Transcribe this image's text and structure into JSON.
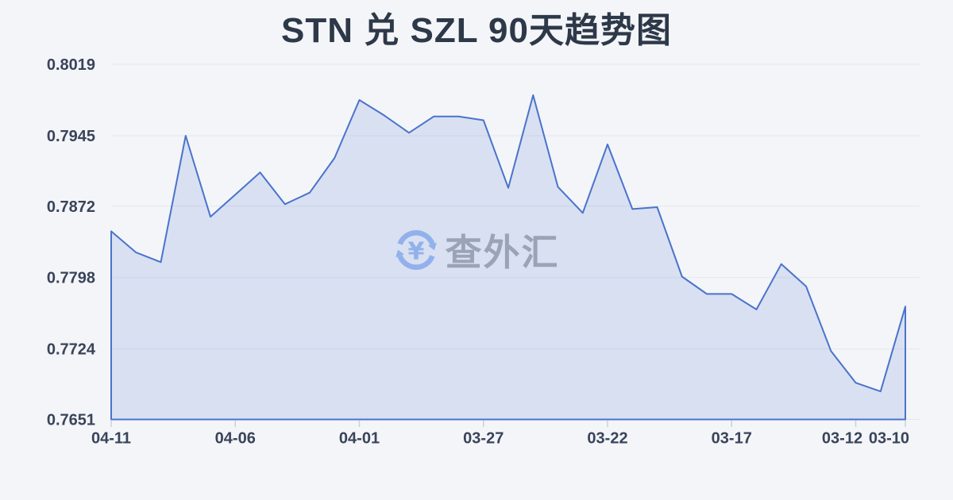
{
  "page": {
    "background": "#f4f5f8"
  },
  "header": {
    "title": "STN 兑 SZL 90天趋势图"
  },
  "watermark": {
    "text": "查外汇",
    "icon": "currency-exchange-icon",
    "icon_color": "#92b1ec",
    "text_color": "#9aa4b6"
  },
  "chart_data": {
    "type": "area",
    "title": "STN 兑 SZL 90天趋势图",
    "x": [
      "04-11",
      "04-10",
      "04-09",
      "04-08",
      "04-07",
      "04-06",
      "04-05",
      "04-04",
      "04-03",
      "04-02",
      "04-01",
      "03-31",
      "03-30",
      "03-29",
      "03-28",
      "03-27",
      "03-26",
      "03-25",
      "03-24",
      "03-23",
      "03-22",
      "03-21",
      "03-20",
      "03-19",
      "03-18",
      "03-17",
      "03-16",
      "03-15",
      "03-14",
      "03-13",
      "03-12",
      "03-11",
      "03-10"
    ],
    "values": [
      0.7846,
      0.7824,
      0.7814,
      0.7945,
      0.7861,
      0.7884,
      0.7907,
      0.7874,
      0.7886,
      0.7922,
      0.7982,
      0.7966,
      0.7948,
      0.7965,
      0.7965,
      0.7961,
      0.7891,
      0.7987,
      0.7892,
      0.7865,
      0.7936,
      0.7869,
      0.7871,
      0.7799,
      0.7781,
      0.7781,
      0.7765,
      0.7812,
      0.7789,
      0.7722,
      0.7689,
      0.768,
      0.7768
    ],
    "ylim": [
      0.7651,
      0.8019
    ],
    "y_tick_labels": [
      "0.8019",
      "0.7945",
      "0.7872",
      "0.7798",
      "0.7724",
      "0.7651"
    ],
    "y_ticks": [
      0.8019,
      0.7945,
      0.7872,
      0.7798,
      0.7724,
      0.7651
    ],
    "x_tick_labels": [
      "04-11",
      "04-06",
      "04-01",
      "03-27",
      "03-22",
      "03-17",
      "03-12",
      "03-10"
    ],
    "x_tick_indices": [
      0,
      5,
      10,
      15,
      20,
      25,
      30,
      32
    ],
    "grid": true,
    "legend": "none",
    "xlabel": "",
    "ylabel": "",
    "line_color": "#4a73cb",
    "fill_color": "rgba(77,118,209,0.16)",
    "grid_color": "#e4e7ee",
    "tick_color": "#ccd0da",
    "axis_label_color": "#39445a"
  }
}
